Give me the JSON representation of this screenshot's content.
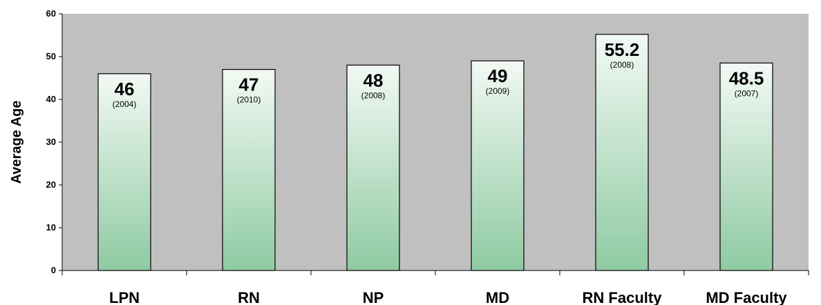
{
  "chart_data": {
    "type": "bar",
    "title": "",
    "xlabel": "",
    "ylabel": "Average Age",
    "ylim": [
      0,
      60
    ],
    "yticks": [
      "0",
      "10",
      "20",
      "30",
      "40",
      "50",
      "60"
    ],
    "categories": [
      "LPN",
      "RN",
      "NP",
      "MD",
      "RN Faculty",
      "MD Faculty"
    ],
    "values": [
      46,
      47,
      48,
      49,
      55.2,
      48.5
    ],
    "value_labels": [
      "46",
      "47",
      "48",
      "49",
      "55.2",
      "48.5"
    ],
    "year_labels": [
      "(2004)",
      "(2010)",
      "(2008)",
      "(2009)",
      "(2008)",
      "(2007)"
    ],
    "grid": false,
    "legend": "none",
    "colors": {
      "plot_background": "#c0c0c0",
      "bar_top": "#f2f9f4",
      "bar_bottom": "#8fcaa2",
      "bar_stroke": "#000000"
    }
  }
}
